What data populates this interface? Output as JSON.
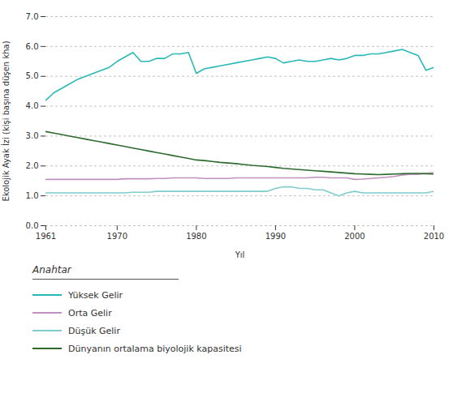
{
  "chart_data": {
    "type": "line",
    "xlabel": "Yıl",
    "ylabel": "Ekolojik Ayak İzi (kişi başına düşen kha)",
    "legend_title": "Anahtar",
    "x": [
      1961,
      1962,
      1963,
      1964,
      1965,
      1966,
      1967,
      1968,
      1969,
      1970,
      1971,
      1972,
      1973,
      1974,
      1975,
      1976,
      1977,
      1978,
      1979,
      1980,
      1981,
      1982,
      1983,
      1984,
      1985,
      1986,
      1987,
      1988,
      1989,
      1990,
      1991,
      1992,
      1993,
      1994,
      1995,
      1996,
      1997,
      1998,
      1999,
      2000,
      2001,
      2002,
      2003,
      2004,
      2005,
      2006,
      2007,
      2008,
      2009,
      2010
    ],
    "series": [
      {
        "name": "Yüksek Gelir",
        "color": "#29B8B8",
        "values": [
          4.2,
          4.45,
          4.6,
          4.75,
          4.9,
          5.0,
          5.1,
          5.2,
          5.3,
          5.5,
          5.65,
          5.8,
          5.5,
          5.5,
          5.6,
          5.6,
          5.75,
          5.75,
          5.8,
          5.1,
          5.25,
          5.3,
          5.35,
          5.4,
          5.45,
          5.5,
          5.55,
          5.6,
          5.65,
          5.6,
          5.45,
          5.5,
          5.55,
          5.5,
          5.5,
          5.55,
          5.6,
          5.55,
          5.6,
          5.7,
          5.7,
          5.75,
          5.75,
          5.8,
          5.85,
          5.9,
          5.8,
          5.7,
          5.2,
          5.3
        ]
      },
      {
        "name": "Orta Gelir",
        "color": "#C090C0",
        "values": [
          1.55,
          1.55,
          1.55,
          1.55,
          1.55,
          1.55,
          1.55,
          1.55,
          1.55,
          1.55,
          1.57,
          1.57,
          1.57,
          1.57,
          1.58,
          1.58,
          1.6,
          1.6,
          1.6,
          1.6,
          1.58,
          1.58,
          1.58,
          1.58,
          1.6,
          1.6,
          1.6,
          1.6,
          1.6,
          1.6,
          1.6,
          1.6,
          1.6,
          1.6,
          1.62,
          1.62,
          1.6,
          1.6,
          1.6,
          1.55,
          1.56,
          1.58,
          1.6,
          1.62,
          1.65,
          1.7,
          1.72,
          1.72,
          1.75,
          1.78
        ]
      },
      {
        "name": "Düşük Gelir",
        "color": "#80CCCC",
        "values": [
          1.1,
          1.1,
          1.1,
          1.1,
          1.1,
          1.1,
          1.1,
          1.1,
          1.1,
          1.1,
          1.1,
          1.12,
          1.12,
          1.12,
          1.15,
          1.15,
          1.15,
          1.15,
          1.15,
          1.15,
          1.15,
          1.15,
          1.15,
          1.15,
          1.15,
          1.15,
          1.15,
          1.15,
          1.15,
          1.25,
          1.3,
          1.3,
          1.25,
          1.25,
          1.2,
          1.2,
          1.1,
          1.0,
          1.1,
          1.15,
          1.1,
          1.1,
          1.1,
          1.1,
          1.1,
          1.1,
          1.1,
          1.1,
          1.1,
          1.15
        ]
      },
      {
        "name": "Dünyanın ortalama biyolojik kapasitesi",
        "color": "#2D6A2D",
        "values": [
          3.15,
          3.1,
          3.05,
          3.0,
          2.95,
          2.9,
          2.85,
          2.8,
          2.75,
          2.7,
          2.65,
          2.6,
          2.55,
          2.5,
          2.45,
          2.4,
          2.35,
          2.3,
          2.25,
          2.2,
          2.18,
          2.15,
          2.12,
          2.1,
          2.08,
          2.05,
          2.02,
          2.0,
          1.98,
          1.95,
          1.92,
          1.9,
          1.88,
          1.86,
          1.84,
          1.82,
          1.8,
          1.78,
          1.76,
          1.74,
          1.73,
          1.72,
          1.71,
          1.72,
          1.73,
          1.74,
          1.75,
          1.75,
          1.74,
          1.73
        ]
      }
    ],
    "xlim": [
      1961,
      2010
    ],
    "xticks": [
      1961,
      1970,
      1980,
      1990,
      2000,
      2010
    ],
    "ylim": [
      0,
      7
    ],
    "yticks": [
      0,
      1,
      2,
      3,
      4,
      5,
      6,
      7
    ],
    "grid": true,
    "legend": "bottom"
  }
}
